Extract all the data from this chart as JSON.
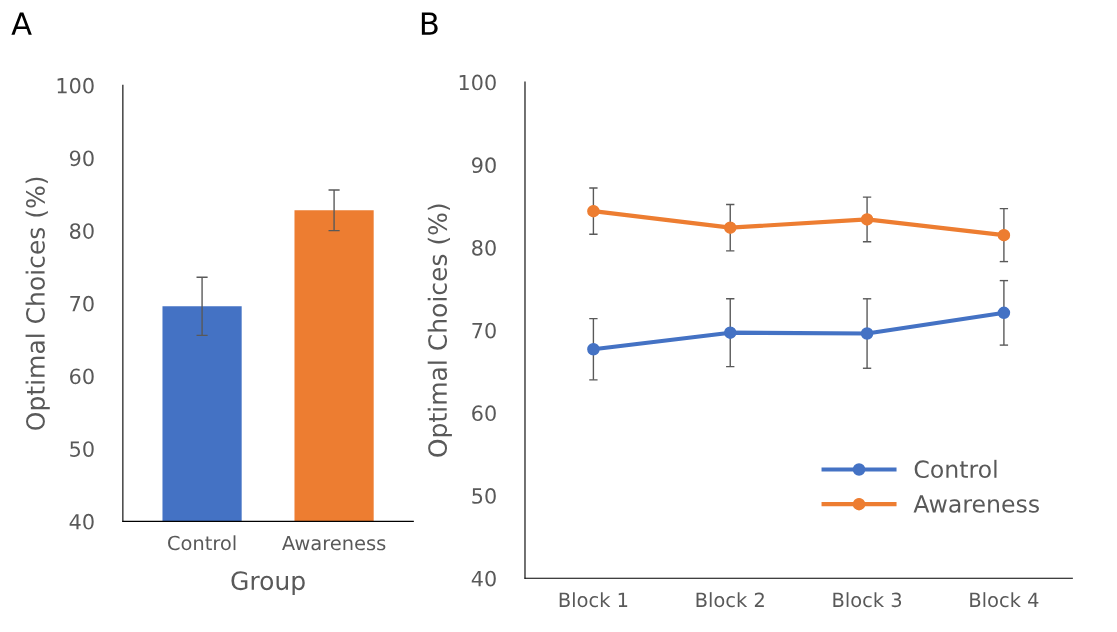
{
  "chart_data": [
    {
      "type": "bar",
      "title": "A",
      "xlabel": "Group",
      "ylabel": "Optimal Choices (%)",
      "categories": [
        "Control",
        "Awareness"
      ],
      "values": [
        69.6,
        82.8
      ],
      "colors": [
        "#4472c4",
        "#ed7d31"
      ],
      "errors": [
        4.0,
        2.8
      ],
      "ylim": [
        40,
        100
      ],
      "yticks": [
        40,
        50,
        60,
        70,
        80,
        90,
        100
      ],
      "grid": false
    },
    {
      "type": "line",
      "title": "B",
      "ylabel": "Optimal Choices (%)",
      "categories": [
        "Block 1",
        "Block 2",
        "Block 3",
        "Block 4"
      ],
      "series": [
        {
          "name": "Control",
          "color": "#4472c4",
          "values": [
            67.7,
            69.7,
            69.6,
            72.1
          ],
          "errors": [
            3.7,
            4.1,
            4.2,
            3.9
          ]
        },
        {
          "name": "Awareness",
          "color": "#ed7d31",
          "values": [
            84.4,
            82.4,
            83.4,
            81.5
          ],
          "errors": [
            2.8,
            2.8,
            2.7,
            3.2
          ]
        }
      ],
      "ylim": [
        40,
        100
      ],
      "yticks": [
        40,
        50,
        60,
        70,
        80,
        90,
        100
      ],
      "grid": false,
      "legend": "lower right",
      "marker": "circle",
      "line_style": "solid"
    }
  ]
}
